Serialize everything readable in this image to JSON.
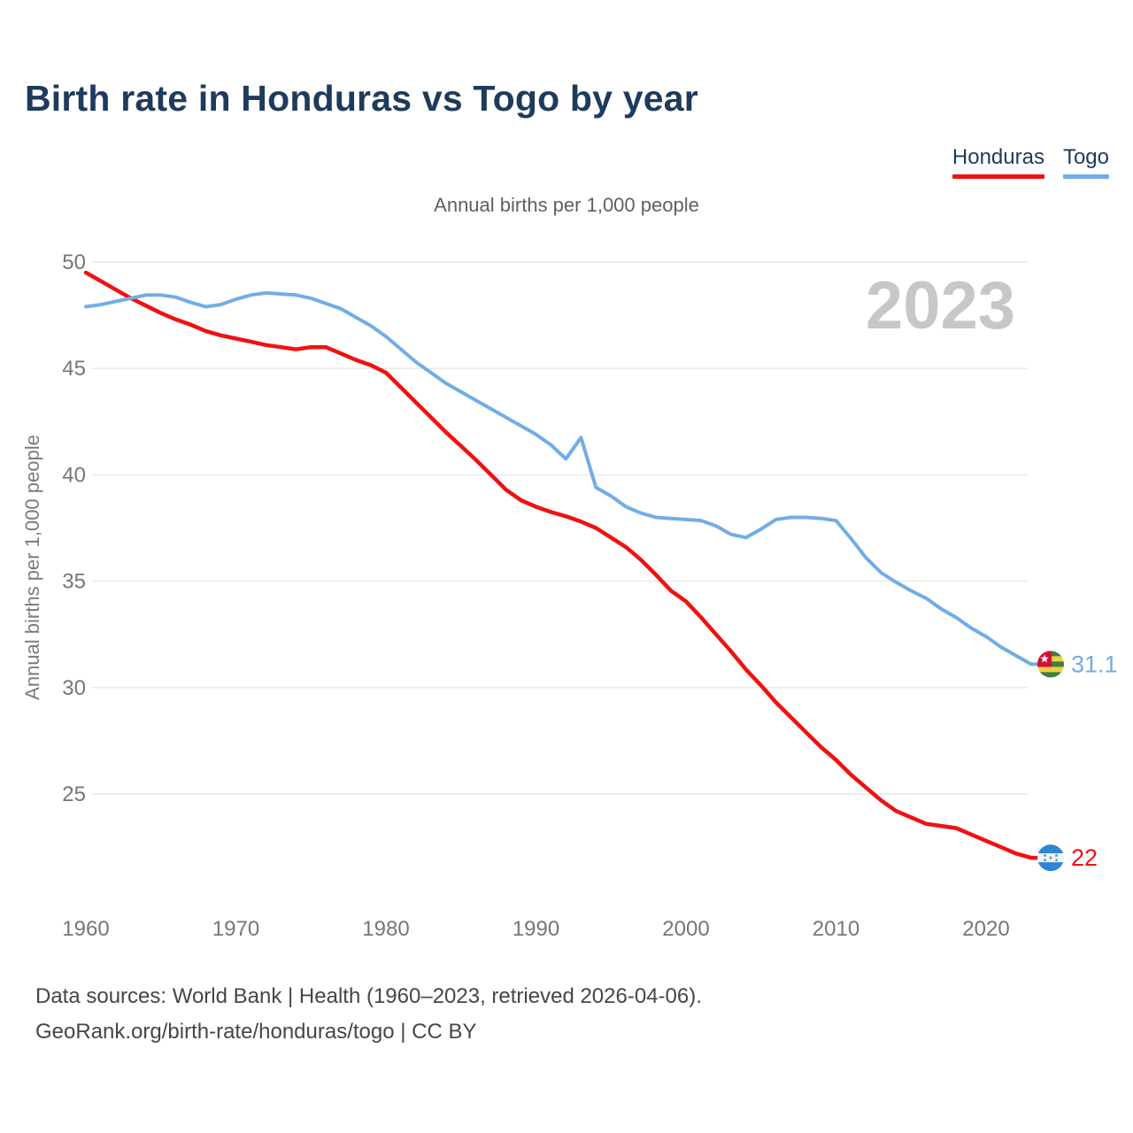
{
  "header": {
    "title": "Birth rate in Honduras vs Togo by year"
  },
  "legend": {
    "items": [
      {
        "label": "Honduras",
        "color": "#f01111"
      },
      {
        "label": "Togo",
        "color": "#71ade6"
      }
    ]
  },
  "chart_data": {
    "type": "line",
    "title": "Birth rate in Honduras vs Togo by year",
    "subtitle": "Annual births per 1,000 people",
    "ylabel": "Annual births per 1,000 people",
    "xlabel": "",
    "watermark": "2023",
    "grid": "horizontal-only",
    "legend_position": "top-right",
    "ylim": [
      21.5,
      50
    ],
    "xlim": [
      1960,
      2023
    ],
    "yticks": [
      50,
      45,
      40,
      35,
      30,
      25
    ],
    "xticks": [
      1960,
      1970,
      1980,
      1990,
      2000,
      2010,
      2020
    ],
    "x": [
      1960,
      1961,
      1962,
      1963,
      1964,
      1965,
      1966,
      1967,
      1968,
      1969,
      1970,
      1971,
      1972,
      1973,
      1974,
      1975,
      1976,
      1977,
      1978,
      1979,
      1980,
      1981,
      1982,
      1983,
      1984,
      1985,
      1986,
      1987,
      1988,
      1989,
      1990,
      1991,
      1992,
      1993,
      1994,
      1995,
      1996,
      1997,
      1998,
      1999,
      2000,
      2001,
      2002,
      2003,
      2004,
      2005,
      2006,
      2007,
      2008,
      2009,
      2010,
      2011,
      2012,
      2013,
      2014,
      2015,
      2016,
      2017,
      2018,
      2019,
      2020,
      2021,
      2022,
      2023
    ],
    "series": [
      {
        "name": "Honduras",
        "color": "#f01111",
        "end_label": "22",
        "flag_icon": "honduras-flag-icon",
        "values": [
          49.5,
          49.1,
          48.7,
          48.3,
          47.95,
          47.6,
          47.3,
          47.05,
          46.75,
          46.55,
          46.4,
          46.25,
          46.1,
          46.0,
          45.9,
          46.0,
          46.0,
          45.7,
          45.4,
          45.15,
          44.8,
          44.1,
          43.4,
          42.7,
          42.0,
          41.35,
          40.7,
          40.0,
          39.3,
          38.8,
          38.5,
          38.25,
          38.05,
          37.8,
          37.5,
          37.05,
          36.6,
          36.0,
          35.3,
          34.55,
          34.05,
          33.3,
          32.5,
          31.7,
          30.85,
          30.1,
          29.3,
          28.6,
          27.9,
          27.2,
          26.6,
          25.9,
          25.3,
          24.7,
          24.2,
          23.9,
          23.6,
          23.5,
          23.4,
          23.1,
          22.8,
          22.5,
          22.2,
          22.0
        ]
      },
      {
        "name": "Togo",
        "color": "#71ade6",
        "end_label": "31.1",
        "flag_icon": "togo-flag-icon",
        "values": [
          47.9,
          48.0,
          48.15,
          48.3,
          48.45,
          48.45,
          48.35,
          48.1,
          47.9,
          48.0,
          48.25,
          48.45,
          48.55,
          48.5,
          48.45,
          48.3,
          48.05,
          47.8,
          47.4,
          47.0,
          46.5,
          45.9,
          45.3,
          44.8,
          44.3,
          43.9,
          43.5,
          43.1,
          42.7,
          42.3,
          41.9,
          41.4,
          40.75,
          41.75,
          39.4,
          39.0,
          38.5,
          38.2,
          38.0,
          37.95,
          37.9,
          37.85,
          37.6,
          37.2,
          37.05,
          37.45,
          37.9,
          38.0,
          38.0,
          37.95,
          37.85,
          37.0,
          36.1,
          35.4,
          34.95,
          34.55,
          34.2,
          33.7,
          33.3,
          32.8,
          32.4,
          31.9,
          31.5,
          31.1
        ]
      }
    ]
  },
  "colors": {
    "title_text": "#1e3a5c",
    "legend_text": "#1e3a5c",
    "subtitle_text": "#5f5f5f",
    "tick_text": "#767676",
    "axis_title_text": "#7a7a7a",
    "gridline": "#e8e8e8",
    "watermark": "#c7c7c7",
    "footer_text": "#464646",
    "honduras_flag_blue": "#2e86d2",
    "honduras_flag_white": "#f2f2f2",
    "togo_flag_green": "#3f7d44",
    "togo_flag_yellow": "#f0ce44",
    "togo_flag_red": "#d21034",
    "togo_flag_star": "#ffffff"
  },
  "footer": {
    "line1": "Data sources: World Bank | Health (1960–2023, retrieved 2026-04-06).",
    "line2": "GeoRank.org/birth-rate/honduras/togo | CC BY"
  }
}
